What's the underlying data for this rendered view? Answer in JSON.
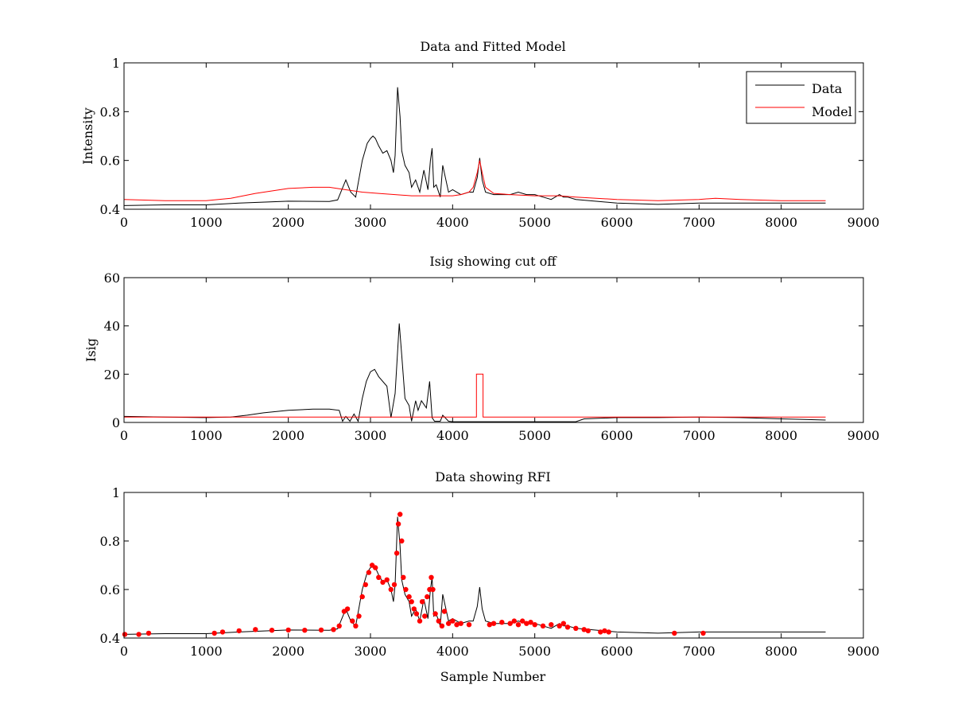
{
  "figure": {
    "background": "#ffffff"
  },
  "chart_data": [
    {
      "type": "line",
      "title": "Data and Fitted Model",
      "xlabel": "",
      "ylabel": "Intensity",
      "xlim": [
        0,
        9000
      ],
      "ylim": [
        0.4,
        1
      ],
      "xticks": [
        "0",
        "1000",
        "2000",
        "3000",
        "4000",
        "5000",
        "6000",
        "7000",
        "8000",
        "9000"
      ],
      "yticks": [
        "0.4",
        "0.6",
        "0.8",
        "1"
      ],
      "grid": false,
      "legend": {
        "position": "top-right",
        "entries": [
          "Data",
          "Model"
        ]
      },
      "series": [
        {
          "name": "Data",
          "color": "#000000",
          "x": [
            0,
            500,
            1000,
            1400,
            2000,
            2500,
            2600,
            2700,
            2760,
            2820,
            2900,
            2960,
            3000,
            3030,
            3060,
            3100,
            3150,
            3200,
            3250,
            3280,
            3300,
            3330,
            3360,
            3380,
            3420,
            3470,
            3500,
            3550,
            3600,
            3650,
            3700,
            3730,
            3750,
            3770,
            3800,
            3850,
            3880,
            3950,
            4000,
            4100,
            4200,
            4250,
            4300,
            4330,
            4360,
            4400,
            4500,
            4600,
            4700,
            4800,
            4900,
            5000,
            5100,
            5200,
            5300,
            5350,
            5400,
            5500,
            6000,
            6500,
            7000,
            7500,
            8000,
            8540
          ],
          "y": [
            0.415,
            0.418,
            0.418,
            0.425,
            0.433,
            0.432,
            0.438,
            0.52,
            0.47,
            0.45,
            0.6,
            0.67,
            0.69,
            0.7,
            0.69,
            0.66,
            0.63,
            0.64,
            0.6,
            0.55,
            0.62,
            0.9,
            0.78,
            0.64,
            0.58,
            0.55,
            0.49,
            0.52,
            0.47,
            0.56,
            0.48,
            0.6,
            0.65,
            0.49,
            0.5,
            0.45,
            0.58,
            0.47,
            0.48,
            0.46,
            0.47,
            0.47,
            0.53,
            0.61,
            0.52,
            0.47,
            0.46,
            0.46,
            0.46,
            0.47,
            0.46,
            0.46,
            0.45,
            0.44,
            0.46,
            0.45,
            0.45,
            0.44,
            0.425,
            0.42,
            0.425,
            0.425,
            0.425,
            0.425
          ]
        },
        {
          "name": "Model",
          "color": "#ff0000",
          "x": [
            0,
            500,
            1000,
            1300,
            1600,
            2000,
            2300,
            2500,
            2700,
            2900,
            3100,
            3500,
            3900,
            4000,
            4100,
            4200,
            4250,
            4300,
            4330,
            4360,
            4400,
            4500,
            4700,
            5000,
            5300,
            5500,
            6000,
            6500,
            7000,
            7200,
            7500,
            8000,
            8540
          ],
          "y": [
            0.44,
            0.435,
            0.435,
            0.445,
            0.465,
            0.485,
            0.49,
            0.49,
            0.48,
            0.47,
            0.465,
            0.455,
            0.455,
            0.455,
            0.46,
            0.47,
            0.49,
            0.55,
            0.6,
            0.55,
            0.49,
            0.465,
            0.46,
            0.455,
            0.455,
            0.45,
            0.44,
            0.435,
            0.44,
            0.445,
            0.44,
            0.435,
            0.435
          ]
        }
      ]
    },
    {
      "type": "line",
      "title": "Isig showing cut off",
      "xlabel": "",
      "ylabel": "Isig",
      "xlim": [
        0,
        9000
      ],
      "ylim": [
        0,
        60
      ],
      "xticks": [
        "0",
        "1000",
        "2000",
        "3000",
        "4000",
        "5000",
        "6000",
        "7000",
        "8000",
        "9000"
      ],
      "yticks": [
        "0",
        "20",
        "40",
        "60"
      ],
      "grid": false,
      "series": [
        {
          "color": "#000000",
          "x": [
            0,
            500,
            1000,
            1300,
            1500,
            1700,
            2000,
            2300,
            2500,
            2620,
            2660,
            2700,
            2750,
            2800,
            2850,
            2900,
            2950,
            3000,
            3050,
            3100,
            3200,
            3250,
            3300,
            3350,
            3380,
            3420,
            3470,
            3500,
            3550,
            3580,
            3620,
            3680,
            3720,
            3750,
            3780,
            3850,
            3880,
            3950,
            4000,
            4500,
            5000,
            5500,
            5600,
            6000,
            6500,
            7000,
            7500,
            8000,
            8540
          ],
          "y": [
            2.5,
            2.2,
            2,
            2.2,
            3,
            4,
            5,
            5.5,
            5.5,
            5,
            0.5,
            2.5,
            0.5,
            3.5,
            0.5,
            10,
            17,
            21,
            22,
            19,
            15,
            2,
            12,
            41,
            28,
            10,
            7,
            0.5,
            9,
            5,
            9,
            6,
            17,
            2,
            0.5,
            0.5,
            3,
            0.5,
            0.3,
            0.3,
            0.3,
            0.3,
            1.5,
            2,
            2,
            2.2,
            2,
            1.5,
            1
          ]
        },
        {
          "color": "#ff0000",
          "x": [
            0,
            500,
            1000,
            2000,
            3000,
            4000,
            4290,
            4290,
            4370,
            4370,
            5000,
            6000,
            7000,
            8000,
            8540
          ],
          "y": [
            2.2,
            2.2,
            2.2,
            2.2,
            2.2,
            2.2,
            2.2,
            20,
            20,
            2.2,
            2.2,
            2.2,
            2.2,
            2.2,
            2.2
          ]
        }
      ]
    },
    {
      "type": "scatter",
      "title": "Data showing RFI",
      "xlabel": "Sample Number",
      "ylabel": "",
      "xlim": [
        0,
        9000
      ],
      "ylim": [
        0.4,
        1
      ],
      "xticks": [
        "0",
        "1000",
        "2000",
        "3000",
        "4000",
        "5000",
        "6000",
        "7000",
        "8000",
        "9000"
      ],
      "yticks": [
        "0.4",
        "0.6",
        "0.8",
        "1"
      ],
      "grid": false,
      "series": [
        {
          "color": "#000000",
          "x": [
            0,
            500,
            1000,
            1400,
            2000,
            2500,
            2600,
            2700,
            2760,
            2820,
            2900,
            2960,
            3000,
            3030,
            3060,
            3100,
            3150,
            3200,
            3250,
            3280,
            3300,
            3330,
            3360,
            3380,
            3420,
            3470,
            3500,
            3550,
            3600,
            3650,
            3700,
            3730,
            3750,
            3770,
            3800,
            3850,
            3880,
            3950,
            4000,
            4100,
            4200,
            4250,
            4300,
            4330,
            4360,
            4400,
            4500,
            4600,
            4700,
            4800,
            4900,
            5000,
            5100,
            5200,
            5300,
            5350,
            5400,
            5500,
            6000,
            6500,
            7000,
            7500,
            8000,
            8540
          ],
          "y": [
            0.415,
            0.418,
            0.418,
            0.425,
            0.433,
            0.432,
            0.438,
            0.52,
            0.47,
            0.45,
            0.6,
            0.67,
            0.69,
            0.7,
            0.69,
            0.66,
            0.63,
            0.64,
            0.6,
            0.55,
            0.62,
            0.9,
            0.78,
            0.64,
            0.58,
            0.55,
            0.49,
            0.52,
            0.47,
            0.56,
            0.48,
            0.6,
            0.65,
            0.49,
            0.5,
            0.45,
            0.58,
            0.47,
            0.48,
            0.46,
            0.47,
            0.47,
            0.53,
            0.61,
            0.52,
            0.47,
            0.46,
            0.46,
            0.46,
            0.47,
            0.46,
            0.46,
            0.45,
            0.44,
            0.46,
            0.45,
            0.45,
            0.44,
            0.425,
            0.42,
            0.425,
            0.425,
            0.425,
            0.425
          ]
        },
        {
          "color": "#ff0000",
          "x": [
            10,
            180,
            300,
            1100,
            1200,
            1400,
            1600,
            1800,
            2000,
            2200,
            2400,
            2550,
            2620,
            2680,
            2720,
            2780,
            2820,
            2860,
            2900,
            2940,
            2980,
            3020,
            3060,
            3100,
            3150,
            3200,
            3250,
            3290,
            3320,
            3340,
            3360,
            3380,
            3400,
            3430,
            3470,
            3500,
            3530,
            3560,
            3600,
            3630,
            3660,
            3690,
            3720,
            3740,
            3760,
            3790,
            3830,
            3870,
            3900,
            3950,
            4000,
            4050,
            4100,
            4200,
            4450,
            4500,
            4600,
            4700,
            4750,
            4800,
            4850,
            4900,
            4950,
            5000,
            5100,
            5200,
            5300,
            5350,
            5400,
            5500,
            5600,
            5650,
            5800,
            5850,
            5900,
            6700,
            7050
          ],
          "y": [
            0.415,
            0.415,
            0.42,
            0.42,
            0.425,
            0.43,
            0.435,
            0.432,
            0.433,
            0.432,
            0.433,
            0.435,
            0.45,
            0.51,
            0.52,
            0.47,
            0.45,
            0.49,
            0.57,
            0.62,
            0.67,
            0.7,
            0.69,
            0.65,
            0.63,
            0.64,
            0.6,
            0.62,
            0.75,
            0.87,
            0.91,
            0.8,
            0.65,
            0.6,
            0.57,
            0.55,
            0.52,
            0.5,
            0.47,
            0.55,
            0.49,
            0.57,
            0.6,
            0.65,
            0.6,
            0.5,
            0.47,
            0.45,
            0.51,
            0.46,
            0.47,
            0.455,
            0.46,
            0.455,
            0.455,
            0.46,
            0.465,
            0.46,
            0.47,
            0.455,
            0.47,
            0.46,
            0.465,
            0.455,
            0.45,
            0.455,
            0.45,
            0.46,
            0.445,
            0.44,
            0.435,
            0.43,
            0.425,
            0.43,
            0.425,
            0.42,
            0.42
          ]
        }
      ]
    }
  ]
}
